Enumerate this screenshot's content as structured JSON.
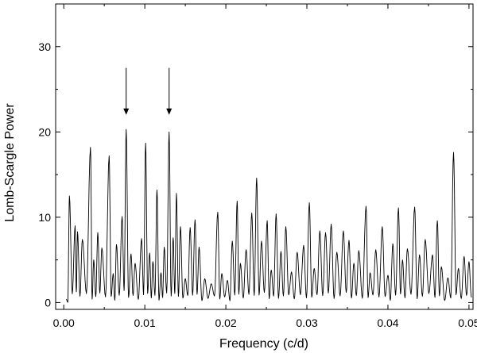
{
  "chart_data": {
    "type": "line",
    "title": "",
    "xlabel": "Frequency (c/d)",
    "ylabel": "Lomb-Scargle Power",
    "xlim": [
      -0.001,
      0.0505
    ],
    "ylim": [
      -0.8,
      35
    ],
    "xticks": [
      "0.00",
      "0.01",
      "0.02",
      "0.03",
      "0.04",
      "0.05"
    ],
    "yticks": [
      "0",
      "10",
      "20",
      "30"
    ],
    "grid": false,
    "legend": "none",
    "line_color": "#000000",
    "arrow_frequencies": [
      0.0077,
      0.013
    ],
    "series": [
      {
        "peaks": [
          [
            0.0007,
            12.5
          ],
          [
            0.0014,
            9.0
          ],
          [
            0.0017,
            8.3
          ],
          [
            0.0023,
            7.4
          ],
          [
            0.0033,
            18.2
          ],
          [
            0.0037,
            5.0
          ],
          [
            0.0042,
            8.2
          ],
          [
            0.0047,
            6.4
          ],
          [
            0.0056,
            17.2
          ],
          [
            0.0061,
            3.4
          ],
          [
            0.0065,
            6.8
          ],
          [
            0.0072,
            10.1
          ],
          [
            0.0077,
            20.3
          ],
          [
            0.0083,
            5.7
          ],
          [
            0.0088,
            4.6
          ],
          [
            0.0096,
            7.5
          ],
          [
            0.0101,
            18.7
          ],
          [
            0.0106,
            5.8
          ],
          [
            0.011,
            4.8
          ],
          [
            0.0115,
            13.2
          ],
          [
            0.012,
            3.5
          ],
          [
            0.0124,
            6.5
          ],
          [
            0.013,
            20.0
          ],
          [
            0.0135,
            7.6
          ],
          [
            0.0139,
            12.8
          ],
          [
            0.0144,
            8.9
          ],
          [
            0.015,
            2.8
          ],
          [
            0.0156,
            8.8
          ],
          [
            0.0162,
            9.7
          ],
          [
            0.0167,
            6.5
          ],
          [
            0.0174,
            2.8
          ],
          [
            0.0182,
            2.2
          ],
          [
            0.019,
            10.6
          ],
          [
            0.0195,
            3.4
          ],
          [
            0.0202,
            2.6
          ],
          [
            0.0208,
            7.2
          ],
          [
            0.0214,
            11.9
          ],
          [
            0.0218,
            4.6
          ],
          [
            0.0225,
            6.2
          ],
          [
            0.0232,
            10.5
          ],
          [
            0.0238,
            14.6
          ],
          [
            0.0244,
            7.2
          ],
          [
            0.0251,
            9.6
          ],
          [
            0.0256,
            3.8
          ],
          [
            0.0262,
            10.4
          ],
          [
            0.0268,
            6.0
          ],
          [
            0.0274,
            8.9
          ],
          [
            0.0281,
            3.6
          ],
          [
            0.0288,
            5.9
          ],
          [
            0.0296,
            6.7
          ],
          [
            0.0303,
            11.7
          ],
          [
            0.0309,
            4.0
          ],
          [
            0.0316,
            8.4
          ],
          [
            0.0323,
            8.2
          ],
          [
            0.033,
            9.2
          ],
          [
            0.0337,
            5.9
          ],
          [
            0.0345,
            8.4
          ],
          [
            0.0352,
            7.3
          ],
          [
            0.0358,
            4.6
          ],
          [
            0.0364,
            6.1
          ],
          [
            0.0373,
            11.3
          ],
          [
            0.0378,
            3.5
          ],
          [
            0.0385,
            6.2
          ],
          [
            0.0393,
            8.9
          ],
          [
            0.04,
            3.2
          ],
          [
            0.0406,
            6.9
          ],
          [
            0.0413,
            11.1
          ],
          [
            0.0418,
            5.0
          ],
          [
            0.0424,
            6.3
          ],
          [
            0.0433,
            11.2
          ],
          [
            0.0439,
            5.6
          ],
          [
            0.0446,
            7.4
          ],
          [
            0.0455,
            5.6
          ],
          [
            0.0461,
            9.6
          ],
          [
            0.0466,
            4.2
          ],
          [
            0.0474,
            2.9
          ],
          [
            0.0481,
            17.6
          ],
          [
            0.0487,
            4.0
          ],
          [
            0.0494,
            5.4
          ],
          [
            0.05,
            4.8
          ]
        ]
      }
    ]
  }
}
